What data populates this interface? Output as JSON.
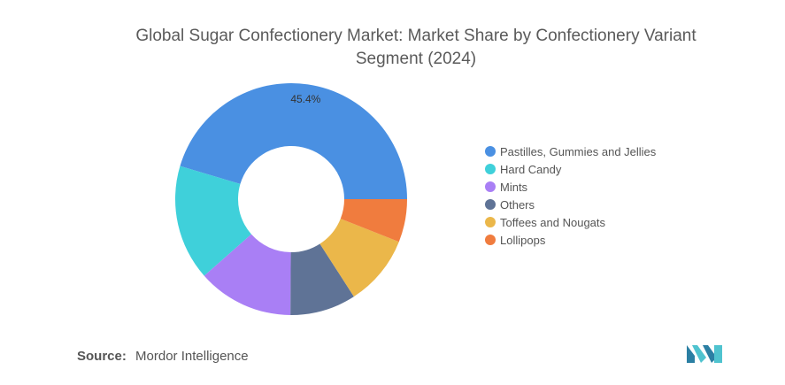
{
  "title": "Global Sugar Confectionery Market: Market Share by Confectionery Variant Segment (2024)",
  "chart_data": {
    "type": "pie",
    "variant": "donut",
    "title": "Global Sugar Confectionery Market: Market Share by Confectionery Variant Segment (2024)",
    "legend_position": "right",
    "categories": [
      "Pastilles, Gummies and Jellies",
      "Hard Candy",
      "Mints",
      "Others",
      "Toffees and Nougats",
      "Lollipops"
    ],
    "values": [
      45.4,
      16.1,
      13.4,
      9.2,
      9.9,
      6.0
    ],
    "colors": [
      "#4a90e2",
      "#3fd0da",
      "#a97ff5",
      "#5f7396",
      "#ebb74a",
      "#f07c3e"
    ],
    "data_labels": [
      "45.4%",
      "",
      "",
      "",
      "",
      ""
    ]
  },
  "source": {
    "label": "Source:",
    "text": "Mordor Intelligence"
  },
  "logo": {
    "icon": "mordor-intelligence-logo-icon",
    "color": "#3aa6c4"
  }
}
